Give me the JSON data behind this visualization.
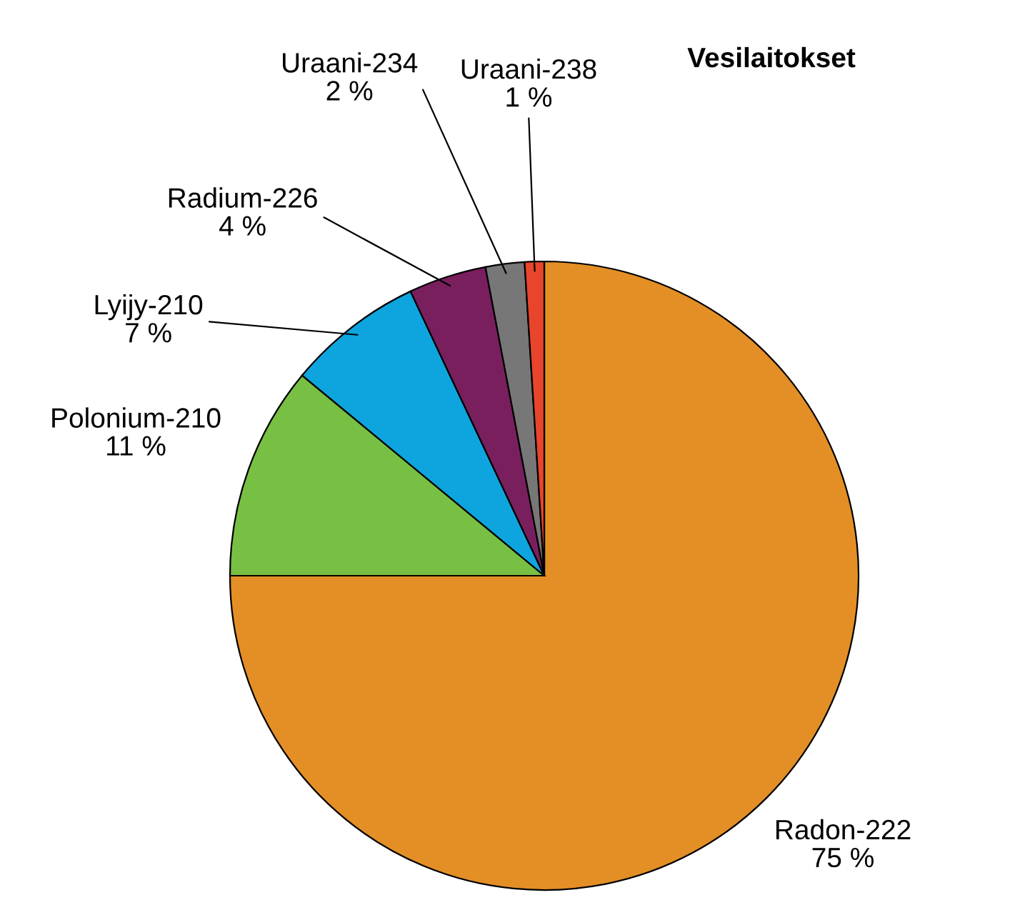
{
  "chart_data": {
    "type": "pie",
    "title": "Vesilaitokset",
    "categories": [
      "Radon-222",
      "Polonium-210",
      "Lyijy-210",
      "Radium-226",
      "Uraani-234",
      "Uraani-238"
    ],
    "values": [
      75,
      11,
      7,
      4,
      2,
      1
    ],
    "value_labels": [
      "75 %",
      "11 %",
      "7 %",
      "4 %",
      "2 %",
      "1 %"
    ],
    "colors": [
      "#e38f26",
      "#77c043",
      "#0ea5df",
      "#7a1f5e",
      "#777777",
      "#e8452c"
    ]
  }
}
